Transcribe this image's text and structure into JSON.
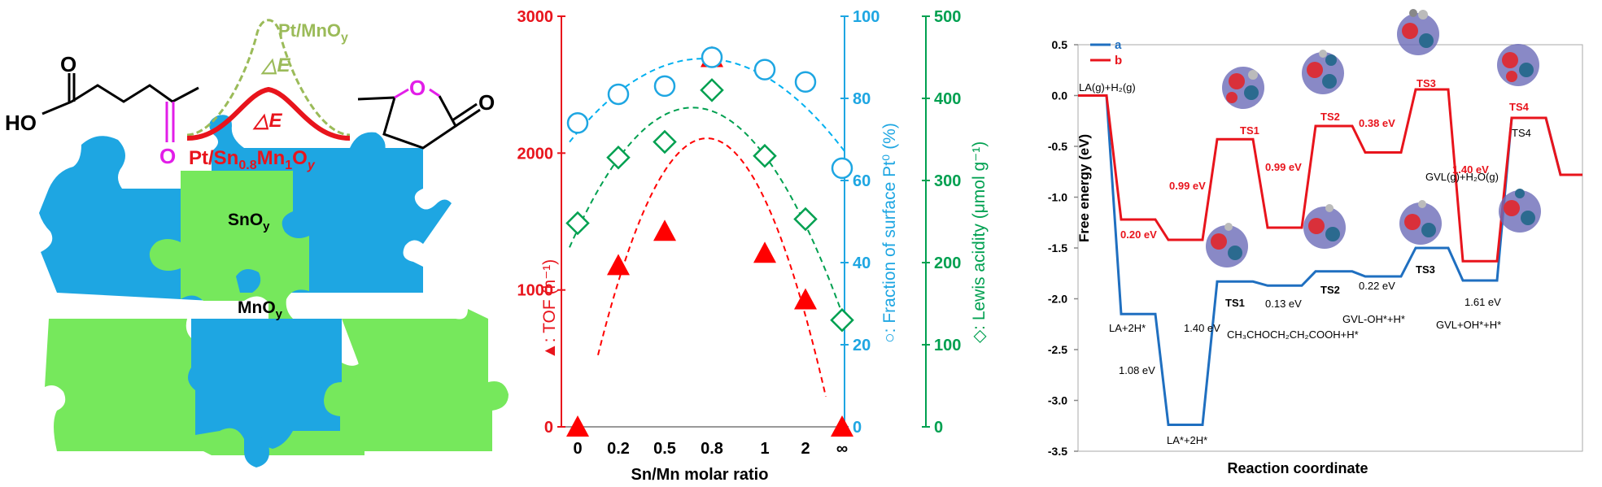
{
  "panel_a": {
    "mol_left": {
      "o_top": "O",
      "ho": "HO",
      "o_bottom": "O"
    },
    "mol_right": {
      "o_ring": "O",
      "o_carbonyl": "O"
    },
    "curve_pt_mno": {
      "label_main": "Pt/MnO",
      "label_sub": "y",
      "delta": "△E"
    },
    "curve_pt_snmn": {
      "label_main": "Pt/Sn",
      "sub1": "0.8",
      "mid": "Mn",
      "sub2": "1",
      "end": "O",
      "sub3": "y",
      "delta": "△E"
    },
    "puzzle": {
      "sno_main": "SnO",
      "sno_sub": "y",
      "mno_main": "MnO",
      "mno_sub": "y"
    },
    "colors": {
      "blue": "#1fa8e0",
      "green": "#76e85c",
      "red": "#e8141c",
      "olive": "#9bbb59",
      "magenta": "#e21ee8"
    }
  },
  "chart_data": [
    {
      "type": "scatter",
      "xlabel": "Sn/Mn molar ratio",
      "categories": [
        "0",
        "0.2",
        "0.5",
        "0.8",
        "1",
        "2",
        "∞"
      ],
      "series": [
        {
          "name": "TOF",
          "marker": "triangle",
          "color": "#ff0000",
          "axis": "left",
          "values": [
            0,
            1180,
            1430,
            2700,
            1270,
            930,
            0
          ]
        },
        {
          "name": "Fraction of surface Pt0",
          "marker": "circle",
          "color": "#00b0f0",
          "axis": "right1",
          "values": [
            74,
            81,
            83,
            90,
            87,
            84,
            63
          ]
        },
        {
          "name": "Lewis acidity",
          "marker": "diamond",
          "color": "#00a050",
          "axis": "right2",
          "values": [
            248,
            328,
            347,
            410,
            330,
            253,
            130
          ]
        }
      ],
      "axes": {
        "left": {
          "label": "▲: TOF (h⁻¹)",
          "ticks": [
            "0",
            "1000",
            "2000",
            "3000"
          ],
          "ylim": [
            0,
            3000
          ]
        },
        "right1": {
          "label": "○: Fraction of surface Pt⁰ (%)",
          "ticks": [
            "0",
            "20",
            "40",
            "60",
            "80",
            "100"
          ],
          "ylim": [
            0,
            100
          ]
        },
        "right2": {
          "label": "◇: Lewis acidity (μmol g⁻¹)",
          "ticks": [
            "0",
            "100",
            "200",
            "300",
            "400",
            "500"
          ],
          "ylim": [
            0,
            500
          ]
        }
      }
    },
    {
      "type": "line",
      "xlabel": "Reaction coordinate",
      "ylabel": "Free energy (eV)",
      "ylim": [
        -3.5,
        0.5
      ],
      "yticks": [
        "0.5",
        "0.0",
        "-0.5",
        "-1.0",
        "-1.5",
        "-2.0",
        "-2.5",
        "-3.0",
        "-3.5"
      ],
      "legend": {
        "position": "top-left",
        "items": [
          {
            "label": "a",
            "color": "#1f6fc0"
          },
          {
            "label": "b",
            "color": "#e8141c"
          }
        ]
      },
      "series": [
        {
          "name": "a",
          "color": "#1f6fc0",
          "values": [
            0.0,
            -2.15,
            -3.24,
            -1.83,
            -1.87,
            -1.73,
            -1.78,
            -1.5,
            -1.82,
            -0.22,
            -0.78
          ]
        },
        {
          "name": "b",
          "color": "#e8141c",
          "values": [
            0.0,
            -1.22,
            -1.42,
            -0.43,
            -1.3,
            -0.3,
            -0.56,
            0.06,
            -1.63,
            -0.22,
            -0.78
          ]
        }
      ],
      "annotations": {
        "start": "LA(g)+H₂(g)",
        "end": "GVL(g)+H₂O(g)",
        "a_la2h": "LA+2H*",
        "a_la_star": "LA*+2H*",
        "a_ts1": "TS1",
        "a_ts2": "TS2",
        "a_ts3": "TS3",
        "a_int2": "CH₃CHOCH₂CH₂COOH+H*",
        "a_int3": "GVL-OH*+H*",
        "a_int4": "GVL+OH*+H*",
        "b_ts1": "TS1",
        "b_ts2": "TS2",
        "b_ts3": "TS3",
        "b_ts4": "TS4",
        "ts4_line": "TS4",
        "e_a_108": "1.08 eV",
        "e_a_140": "1.40 eV",
        "e_a_013": "0.13 eV",
        "e_a_022": "0.22 eV",
        "e_a_161": "1.61 eV",
        "e_b_020": "0.20 eV",
        "e_b_099a": "0.99 eV",
        "e_b_099b": "0.99 eV",
        "e_b_038": "0.38 eV",
        "e_b_140": "1.40 eV"
      }
    }
  ]
}
